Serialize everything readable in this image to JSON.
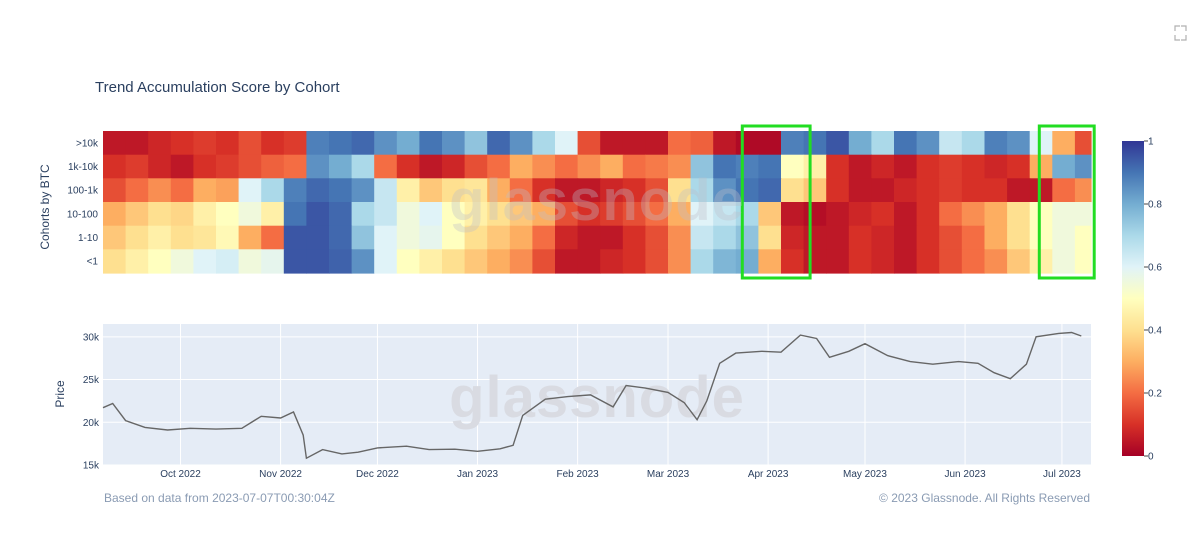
{
  "chart_data": {
    "title": "Trend Accumulation Score by Cohort",
    "watermark": "glassnode",
    "footer_left": "Based on data from 2023-07-07T00:30:04Z",
    "footer_right": "© 2023 Glassnode. All Rights Reserved",
    "heatmap": {
      "type": "heatmap",
      "ylabel": "Cohorts by BTC",
      "cohorts": [
        ">10k",
        "1k-10k",
        "100-1k",
        "10-100",
        "1-10",
        "<1"
      ],
      "start_date": "2022-09-07",
      "step_days": 7,
      "dates": [
        "2022-09-07",
        "2022-09-14",
        "2022-09-21",
        "2022-09-28",
        "2022-10-05",
        "2022-10-12",
        "2022-10-19",
        "2022-10-26",
        "2022-11-02",
        "2022-11-09",
        "2022-11-16",
        "2022-11-23",
        "2022-11-30",
        "2022-12-07",
        "2022-12-14",
        "2022-12-21",
        "2022-12-28",
        "2023-01-04",
        "2023-01-11",
        "2023-01-18",
        "2023-01-25",
        "2023-02-01",
        "2023-02-08",
        "2023-02-15",
        "2023-02-22",
        "2023-03-01",
        "2023-03-08",
        "2023-03-15",
        "2023-03-22",
        "2023-03-29",
        "2023-04-05",
        "2023-04-12",
        "2023-04-19",
        "2023-04-26",
        "2023-05-03",
        "2023-05-10",
        "2023-05-17",
        "2023-05-24",
        "2023-05-31",
        "2023-06-07",
        "2023-06-14",
        "2023-06-21",
        "2023-06-28",
        "2023-07-05"
      ],
      "values": [
        [
          0.05,
          0.05,
          0.08,
          0.1,
          0.12,
          0.1,
          0.15,
          0.1,
          0.12,
          0.88,
          0.9,
          0.92,
          0.85,
          0.8,
          0.9,
          0.85,
          0.75,
          0.92,
          0.85,
          0.7,
          0.6,
          0.15,
          0.05,
          0.05,
          0.05,
          0.2,
          0.18,
          0.05,
          0.02,
          0.02,
          0.88,
          0.9,
          0.95,
          0.8,
          0.7,
          0.9,
          0.85,
          0.65,
          0.7,
          0.88,
          0.85,
          0.6,
          0.3,
          0.15
        ],
        [
          0.1,
          0.12,
          0.08,
          0.05,
          0.1,
          0.12,
          0.15,
          0.18,
          0.2,
          0.85,
          0.8,
          0.7,
          0.2,
          0.1,
          0.05,
          0.08,
          0.15,
          0.2,
          0.3,
          0.25,
          0.2,
          0.25,
          0.3,
          0.2,
          0.22,
          0.25,
          0.75,
          0.9,
          0.88,
          0.9,
          0.5,
          0.45,
          0.1,
          0.05,
          0.08,
          0.05,
          0.1,
          0.12,
          0.1,
          0.08,
          0.1,
          0.3,
          0.8,
          0.85
        ],
        [
          0.15,
          0.2,
          0.25,
          0.2,
          0.3,
          0.28,
          0.6,
          0.7,
          0.88,
          0.92,
          0.9,
          0.85,
          0.65,
          0.45,
          0.35,
          0.4,
          0.42,
          0.3,
          0.2,
          0.1,
          0.05,
          0.05,
          0.08,
          0.1,
          0.15,
          0.4,
          0.7,
          0.85,
          0.9,
          0.92,
          0.4,
          0.35,
          0.1,
          0.05,
          0.05,
          0.08,
          0.1,
          0.12,
          0.1,
          0.1,
          0.05,
          0.05,
          0.2,
          0.25
        ],
        [
          0.3,
          0.35,
          0.4,
          0.38,
          0.45,
          0.5,
          0.55,
          0.45,
          0.9,
          0.95,
          0.92,
          0.7,
          0.65,
          0.55,
          0.6,
          0.5,
          0.45,
          0.4,
          0.35,
          0.3,
          0.15,
          0.1,
          0.12,
          0.15,
          0.2,
          0.3,
          0.6,
          0.65,
          0.7,
          0.35,
          0.05,
          0.03,
          0.05,
          0.08,
          0.1,
          0.05,
          0.1,
          0.2,
          0.25,
          0.3,
          0.4,
          0.5,
          0.55,
          0.55
        ],
        [
          0.35,
          0.4,
          0.45,
          0.4,
          0.42,
          0.48,
          0.3,
          0.2,
          0.95,
          0.95,
          0.92,
          0.75,
          0.6,
          0.55,
          0.58,
          0.5,
          0.4,
          0.35,
          0.3,
          0.2,
          0.08,
          0.05,
          0.05,
          0.1,
          0.15,
          0.25,
          0.65,
          0.7,
          0.75,
          0.4,
          0.08,
          0.05,
          0.05,
          0.1,
          0.08,
          0.05,
          0.1,
          0.15,
          0.2,
          0.3,
          0.4,
          0.5,
          0.55,
          0.5
        ],
        [
          0.4,
          0.45,
          0.5,
          0.55,
          0.6,
          0.62,
          0.55,
          0.58,
          0.95,
          0.95,
          0.93,
          0.85,
          0.6,
          0.5,
          0.45,
          0.4,
          0.35,
          0.3,
          0.25,
          0.15,
          0.05,
          0.05,
          0.08,
          0.1,
          0.15,
          0.25,
          0.7,
          0.78,
          0.8,
          0.3,
          0.1,
          0.05,
          0.05,
          0.1,
          0.08,
          0.05,
          0.1,
          0.15,
          0.2,
          0.25,
          0.35,
          0.45,
          0.55,
          0.5
        ]
      ],
      "colorscale": [
        "#a50026",
        "#d73027",
        "#f46d43",
        "#fdae61",
        "#fee090",
        "#ffffbf",
        "#e0f3f8",
        "#abd9e9",
        "#74add1",
        "#4575b4",
        "#313695"
      ],
      "colorbar_ticks": [
        "0",
        "0.2",
        "0.4",
        "0.6",
        "0.8",
        "1"
      ],
      "highlight_boxes": [
        {
          "from": "2023-03-24",
          "to": "2023-04-14",
          "color": "#22dd22"
        },
        {
          "from": "2023-06-24",
          "to": "2023-07-11",
          "color": "#22dd22"
        }
      ]
    },
    "price": {
      "type": "line",
      "ylabel": "Price",
      "ylim": [
        15000,
        31500
      ],
      "yticks": [
        {
          "value": 15000,
          "label": "15k"
        },
        {
          "value": 20000,
          "label": "20k"
        },
        {
          "value": 25000,
          "label": "25k"
        },
        {
          "value": 30000,
          "label": "30k"
        }
      ],
      "line_color": "#666666",
      "background": "#e5ecf6",
      "x": [
        "2022-09-07",
        "2022-09-10",
        "2022-09-14",
        "2022-09-20",
        "2022-09-27",
        "2022-10-04",
        "2022-10-12",
        "2022-10-20",
        "2022-10-26",
        "2022-11-01",
        "2022-11-05",
        "2022-11-08",
        "2022-11-09",
        "2022-11-14",
        "2022-11-20",
        "2022-11-25",
        "2022-12-01",
        "2022-12-10",
        "2022-12-17",
        "2022-12-25",
        "2023-01-01",
        "2023-01-08",
        "2023-01-12",
        "2023-01-15",
        "2023-01-22",
        "2023-01-29",
        "2023-02-05",
        "2023-02-12",
        "2023-02-16",
        "2023-02-22",
        "2023-03-01",
        "2023-03-06",
        "2023-03-10",
        "2023-03-13",
        "2023-03-17",
        "2023-03-22",
        "2023-03-30",
        "2023-04-05",
        "2023-04-11",
        "2023-04-16",
        "2023-04-20",
        "2023-04-26",
        "2023-05-01",
        "2023-05-08",
        "2023-05-15",
        "2023-05-22",
        "2023-05-30",
        "2023-06-05",
        "2023-06-10",
        "2023-06-15",
        "2023-06-20",
        "2023-06-23",
        "2023-06-30",
        "2023-07-04",
        "2023-07-07"
      ],
      "y": [
        21700,
        22200,
        20200,
        19400,
        19100,
        19300,
        19200,
        19300,
        20700,
        20500,
        21200,
        18500,
        15800,
        16800,
        16300,
        16500,
        17000,
        17200,
        16800,
        16850,
        16600,
        16900,
        17300,
        20800,
        22700,
        23000,
        23200,
        21800,
        24300,
        24000,
        23500,
        22300,
        20300,
        22500,
        26900,
        28100,
        28300,
        28200,
        30200,
        29800,
        27600,
        28300,
        29200,
        27800,
        27100,
        26800,
        27100,
        26900,
        25800,
        25100,
        26800,
        30000,
        30400,
        30500,
        30100
      ]
    },
    "x_axis": {
      "ticks": [
        {
          "date": "2022-10-01",
          "label": "Oct 2022"
        },
        {
          "date": "2022-11-01",
          "label": "Nov 2022"
        },
        {
          "date": "2022-12-01",
          "label": "Dec 2022"
        },
        {
          "date": "2023-01-01",
          "label": "Jan 2023"
        },
        {
          "date": "2023-02-01",
          "label": "Feb 2023"
        },
        {
          "date": "2023-03-01",
          "label": "Mar 2023"
        },
        {
          "date": "2023-04-01",
          "label": "Apr 2023"
        },
        {
          "date": "2023-05-01",
          "label": "May 2023"
        },
        {
          "date": "2023-06-01",
          "label": "Jun 2023"
        },
        {
          "date": "2023-07-01",
          "label": "Jul 2023"
        }
      ],
      "range": [
        "2022-09-07",
        "2023-07-10"
      ]
    },
    "icons": {
      "expand": "expand-icon"
    }
  }
}
